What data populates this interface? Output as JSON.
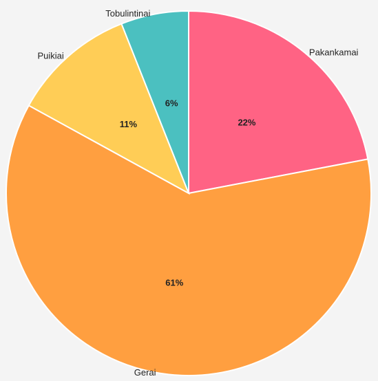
{
  "chart_data": {
    "type": "pie",
    "categories": [
      "Pakankamai",
      "Gerai",
      "Puikiai",
      "Tobulintinai"
    ],
    "values": [
      22,
      61,
      11,
      6
    ],
    "value_labels": [
      "22%",
      "61%",
      "11%",
      "6%"
    ],
    "colors": [
      "#ff6384",
      "#ff9f40",
      "#ffcd56",
      "#4bc0c0"
    ]
  }
}
